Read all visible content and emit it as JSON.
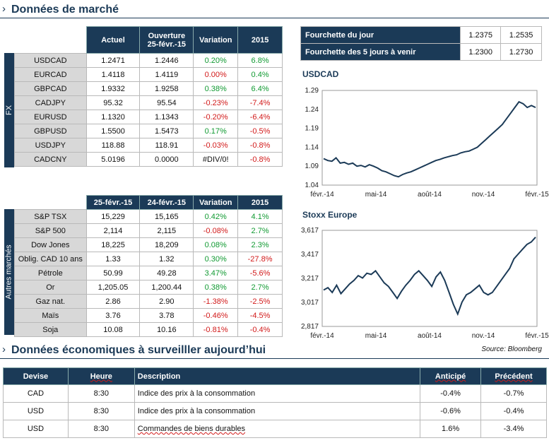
{
  "section_market": {
    "title": "Données de marché"
  },
  "section_eco": {
    "title": "Données économiques à surveilller aujourd’hui"
  },
  "fx": {
    "side_label": "FX",
    "headers": [
      "Actuel",
      "Ouverture 25-févr.-15",
      "Variation",
      "2015"
    ],
    "header_open_line1": "Ouverture",
    "header_open_line2": "25-févr.-15",
    "rows": [
      {
        "name": "USDCAD",
        "cur": "1.2471",
        "open": "1.2446",
        "var": "0.20%",
        "ytd": "6.8%",
        "var_sign": "pos",
        "ytd_sign": "pos"
      },
      {
        "name": "EURCAD",
        "cur": "1.4118",
        "open": "1.4119",
        "var": "0.00%",
        "ytd": "0.4%",
        "var_sign": "neg",
        "ytd_sign": "pos"
      },
      {
        "name": "GBPCAD",
        "cur": "1.9332",
        "open": "1.9258",
        "var": "0.38%",
        "ytd": "6.4%",
        "var_sign": "pos",
        "ytd_sign": "pos"
      },
      {
        "name": "CADJPY",
        "cur": "95.32",
        "open": "95.54",
        "var": "-0.23%",
        "ytd": "-7.4%",
        "var_sign": "neg",
        "ytd_sign": "neg"
      },
      {
        "name": "EURUSD",
        "cur": "1.1320",
        "open": "1.1343",
        "var": "-0.20%",
        "ytd": "-6.4%",
        "var_sign": "neg",
        "ytd_sign": "neg"
      },
      {
        "name": "GBPUSD",
        "cur": "1.5500",
        "open": "1.5473",
        "var": "0.17%",
        "ytd": "-0.5%",
        "var_sign": "pos",
        "ytd_sign": "neg"
      },
      {
        "name": "USDJPY",
        "cur": "118.88",
        "open": "118.91",
        "var": "-0.03%",
        "ytd": "-0.8%",
        "var_sign": "neg",
        "ytd_sign": "neg"
      },
      {
        "name": "CADCNY",
        "cur": "5.0196",
        "open": "0.0000",
        "var": "#DIV/0!",
        "ytd": "-0.8%",
        "var_sign": "none",
        "ytd_sign": "neg"
      }
    ]
  },
  "other": {
    "side_label": "Autres marchés",
    "headers": [
      "25-févr.-15",
      "24-févr.-15",
      "Variation",
      "2015"
    ],
    "rows": [
      {
        "name": "S&P TSX",
        "cur": "15,229",
        "prev": "15,165",
        "var": "0.42%",
        "ytd": "4.1%",
        "var_sign": "pos",
        "ytd_sign": "pos"
      },
      {
        "name": "S&P 500",
        "cur": "2,114",
        "prev": "2,115",
        "var": "-0.08%",
        "ytd": "2.7%",
        "var_sign": "neg",
        "ytd_sign": "pos"
      },
      {
        "name": "Dow Jones",
        "cur": "18,225",
        "prev": "18,209",
        "var": "0.08%",
        "ytd": "2.3%",
        "var_sign": "pos",
        "ytd_sign": "pos"
      },
      {
        "name": "Oblig. CAD 10 ans",
        "cur": "1.33",
        "prev": "1.32",
        "var": "0.30%",
        "ytd": "-27.8%",
        "var_sign": "pos",
        "ytd_sign": "neg"
      },
      {
        "name": "Pétrole",
        "cur": "50.99",
        "prev": "49.28",
        "var": "3.47%",
        "ytd": "-5.6%",
        "var_sign": "pos",
        "ytd_sign": "neg"
      },
      {
        "name": "Or",
        "cur": "1,205.05",
        "prev": "1,200.44",
        "var": "0.38%",
        "ytd": "2.7%",
        "var_sign": "pos",
        "ytd_sign": "pos"
      },
      {
        "name": "Gaz nat.",
        "cur": "2.86",
        "prev": "2.90",
        "var": "-1.38%",
        "ytd": "-2.5%",
        "var_sign": "neg",
        "ytd_sign": "neg"
      },
      {
        "name": "Maïs",
        "cur": "3.76",
        "prev": "3.78",
        "var": "-0.46%",
        "ytd": "-4.5%",
        "var_sign": "neg",
        "ytd_sign": "neg"
      },
      {
        "name": "Soja",
        "cur": "10.08",
        "prev": "10.16",
        "var": "-0.81%",
        "ytd": "-0.4%",
        "var_sign": "neg",
        "ytd_sign": "neg"
      }
    ]
  },
  "ranges": {
    "rows": [
      {
        "label": "Fourchette du jour",
        "low": "1.2375",
        "high": "1.2535"
      },
      {
        "label": "Fourchette des 5 jours à venir",
        "low": "1.2300",
        "high": "1.2730"
      }
    ]
  },
  "chart_data": [
    {
      "type": "line",
      "title": "USDCAD",
      "xlabel": "",
      "ylabel": "",
      "x_ticks": [
        "févr.-14",
        "mai-14",
        "août-14",
        "nov.-14",
        "févr.-15"
      ],
      "y_ticks": [
        "1.29",
        "1.24",
        "1.19",
        "1.14",
        "1.09",
        "1.04"
      ],
      "ylim": [
        1.04,
        1.29
      ],
      "color": "#1b3a57",
      "series": [
        {
          "values": [
            1.11,
            1.105,
            1.103,
            1.112,
            1.098,
            1.1,
            1.095,
            1.098,
            1.09,
            1.092,
            1.088,
            1.094,
            1.09,
            1.085,
            1.078,
            1.075,
            1.07,
            1.065,
            1.062,
            1.068,
            1.072,
            1.075,
            1.08,
            1.085,
            1.09,
            1.095,
            1.1,
            1.105,
            1.108,
            1.112,
            1.115,
            1.118,
            1.12,
            1.125,
            1.128,
            1.13,
            1.135,
            1.14,
            1.15,
            1.16,
            1.17,
            1.18,
            1.19,
            1.2,
            1.215,
            1.23,
            1.245,
            1.26,
            1.255,
            1.245,
            1.25,
            1.245
          ]
        }
      ]
    },
    {
      "type": "line",
      "title": "Stoxx Europe",
      "xlabel": "",
      "ylabel": "",
      "x_ticks": [
        "févr.-14",
        "mai-14",
        "août-14",
        "nov.-14",
        "févr.-15"
      ],
      "y_ticks": [
        "3,617",
        "3,417",
        "3,217",
        "3,017",
        "2,817"
      ],
      "ylim": [
        2817,
        3617
      ],
      "color": "#1b3a57",
      "series": [
        {
          "values": [
            3120,
            3140,
            3100,
            3160,
            3090,
            3130,
            3170,
            3200,
            3240,
            3220,
            3260,
            3250,
            3280,
            3230,
            3180,
            3150,
            3100,
            3050,
            3110,
            3160,
            3200,
            3250,
            3280,
            3240,
            3200,
            3150,
            3230,
            3270,
            3200,
            3100,
            3000,
            2920,
            3020,
            3080,
            3100,
            3130,
            3160,
            3100,
            3080,
            3100,
            3150,
            3200,
            3250,
            3300,
            3380,
            3420,
            3460,
            3500,
            3520,
            3560
          ]
        }
      ]
    }
  ],
  "source": "Source: Bloomberg",
  "eco": {
    "headers": [
      "Devise",
      "Heure",
      "Description",
      "Anticipé",
      "Précédent"
    ],
    "rows": [
      {
        "cur": "CAD",
        "time": "8:30",
        "desc": "Indice des prix à la consommation",
        "exp": "-0.4%",
        "prev": "-0.7%"
      },
      {
        "cur": "USD",
        "time": "8:30",
        "desc": "Indice des prix à la consommation",
        "exp": "-0.6%",
        "prev": "-0.4%"
      },
      {
        "cur": "USD",
        "time": "8:30",
        "desc": "Commandes de biens durables",
        "exp": "1.6%",
        "prev": "-3.4%"
      }
    ]
  }
}
